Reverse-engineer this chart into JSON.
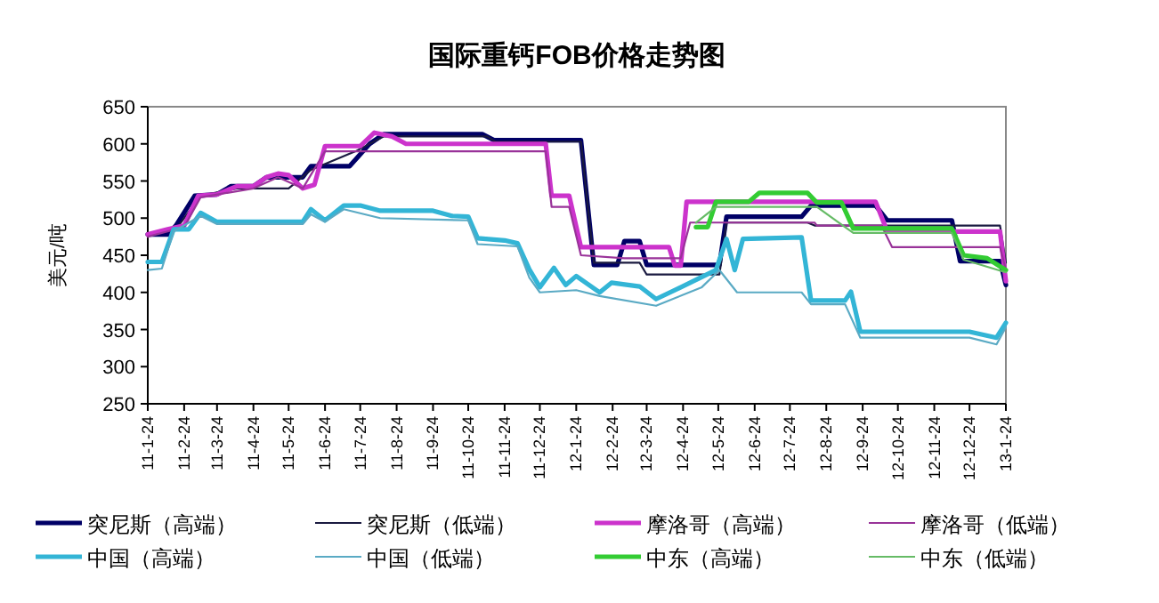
{
  "chart_data": {
    "type": "line",
    "title": "国际重钙FOB价格走势图",
    "ylabel": "美元/吨",
    "ylim": [
      250,
      650
    ],
    "yticks": [
      250,
      300,
      350,
      400,
      450,
      500,
      550,
      600,
      650
    ],
    "xlim": [
      "2011-01-24",
      "2013-01-24"
    ],
    "xticks": [
      {
        "value": "2011-01-24",
        "label": "11-1-24"
      },
      {
        "value": "2011-02-24",
        "label": "11-2-24"
      },
      {
        "value": "2011-03-24",
        "label": "11-3-24"
      },
      {
        "value": "2011-04-24",
        "label": "11-4-24"
      },
      {
        "value": "2011-05-24",
        "label": "11-5-24"
      },
      {
        "value": "2011-06-24",
        "label": "11-6-24"
      },
      {
        "value": "2011-07-24",
        "label": "11-7-24"
      },
      {
        "value": "2011-08-24",
        "label": "11-8-24"
      },
      {
        "value": "2011-09-24",
        "label": "11-9-24"
      },
      {
        "value": "2011-10-24",
        "label": "11-10-24"
      },
      {
        "value": "2011-11-24",
        "label": "11-11-24"
      },
      {
        "value": "2011-12-24",
        "label": "11-12-24"
      },
      {
        "value": "2012-01-24",
        "label": "12-1-24"
      },
      {
        "value": "2012-02-24",
        "label": "12-2-24"
      },
      {
        "value": "2012-03-24",
        "label": "12-3-24"
      },
      {
        "value": "2012-04-24",
        "label": "12-4-24"
      },
      {
        "value": "2012-05-24",
        "label": "12-5-24"
      },
      {
        "value": "2012-06-24",
        "label": "12-6-24"
      },
      {
        "value": "2012-07-24",
        "label": "12-7-24"
      },
      {
        "value": "2012-08-24",
        "label": "12-8-24"
      },
      {
        "value": "2012-09-24",
        "label": "12-9-24"
      },
      {
        "value": "2012-10-24",
        "label": "12-10-24"
      },
      {
        "value": "2012-11-24",
        "label": "12-11-24"
      },
      {
        "value": "2012-12-24",
        "label": "12-12-24"
      },
      {
        "value": "2013-01-24",
        "label": "13-1-24"
      }
    ],
    "grid": false,
    "legend": "bottom",
    "marker": "none",
    "line_style": "solid",
    "series": [
      {
        "name": "突尼斯（高端）",
        "color": "#000066",
        "x": [
          "2011-01-24",
          "2011-02-10",
          "2011-02-17",
          "2011-03-05",
          "2011-03-24",
          "2011-04-05",
          "2011-04-24",
          "2011-05-05",
          "2011-06-05",
          "2011-06-12",
          "2011-07-15",
          "2011-08-01",
          "2011-08-13",
          "2011-11-05",
          "2011-11-15",
          "2012-01-28",
          "2012-02-08",
          "2012-02-28",
          "2012-03-05",
          "2012-03-18",
          "2012-03-24",
          "2012-05-25",
          "2012-05-31",
          "2012-08-03",
          "2012-08-11",
          "2012-10-05",
          "2012-10-15",
          "2012-12-09",
          "2012-12-16",
          "2013-01-19",
          "2013-01-24"
        ],
        "values": [
          478,
          478,
          490,
          530,
          532,
          543,
          543,
          555,
          555,
          570,
          570,
          600,
          613,
          613,
          605,
          605,
          437,
          437,
          469,
          469,
          437,
          437,
          502,
          502,
          517,
          517,
          497,
          497,
          442,
          442,
          410
        ]
      },
      {
        "name": "突尼斯（低端）",
        "color": "#1a1a40",
        "x": [
          "2011-01-24",
          "2011-02-17",
          "2011-03-10",
          "2011-04-10",
          "2011-05-24",
          "2011-06-12",
          "2011-07-20",
          "2011-08-13",
          "2011-11-09",
          "2011-11-16",
          "2012-01-28",
          "2012-02-08",
          "2012-03-18",
          "2012-03-24",
          "2012-05-25",
          "2012-05-31",
          "2012-08-08",
          "2012-08-14",
          "2013-01-19",
          "2013-01-24"
        ],
        "values": [
          478,
          485,
          530,
          540,
          540,
          565,
          590,
          610,
          610,
          603,
          603,
          440,
          440,
          424,
          424,
          494,
          494,
          490,
          490,
          440
        ]
      },
      {
        "name": "摩洛哥（高端）",
        "color": "#cc33cc",
        "x": [
          "2011-01-24",
          "2011-02-10",
          "2011-02-24",
          "2011-03-08",
          "2011-03-24",
          "2011-04-10",
          "2011-04-24",
          "2011-05-05",
          "2011-05-15",
          "2011-05-24",
          "2011-06-05",
          "2011-06-15",
          "2011-06-24",
          "2011-07-24",
          "2011-08-05",
          "2011-08-20",
          "2011-09-01",
          "2011-12-29",
          "2012-01-03",
          "2012-01-18",
          "2012-01-28",
          "2012-04-12",
          "2012-04-17",
          "2012-04-22",
          "2012-04-27",
          "2012-10-05",
          "2012-10-15",
          "2013-01-19",
          "2013-01-24"
        ],
        "values": [
          478,
          485,
          490,
          530,
          532,
          543,
          543,
          555,
          560,
          558,
          540,
          545,
          597,
          597,
          615,
          610,
          600,
          600,
          530,
          530,
          461,
          461,
          436,
          436,
          522,
          522,
          482,
          482,
          415
        ]
      },
      {
        "name": "摩洛哥（低端）",
        "color": "#993399",
        "x": [
          "2011-01-24",
          "2011-02-24",
          "2011-03-10",
          "2011-04-24",
          "2011-05-15",
          "2011-06-05",
          "2011-06-24",
          "2011-12-29",
          "2012-01-03",
          "2012-01-18",
          "2012-01-28",
          "2012-03-05",
          "2012-04-22",
          "2012-04-30",
          "2012-08-14",
          "2012-08-16",
          "2012-10-10",
          "2012-10-19",
          "2013-01-19",
          "2013-01-24"
        ],
        "values": [
          475,
          488,
          528,
          540,
          555,
          540,
          590,
          590,
          515,
          515,
          450,
          446,
          446,
          494,
          494,
          490,
          490,
          461,
          461,
          430
        ]
      },
      {
        "name": "中国（高端）",
        "color": "#33b5d6",
        "x": [
          "2011-01-24",
          "2011-02-05",
          "2011-02-15",
          "2011-02-28",
          "2011-03-10",
          "2011-03-24",
          "2011-06-05",
          "2011-06-12",
          "2011-06-24",
          "2011-07-10",
          "2011-07-24",
          "2011-08-10",
          "2011-09-24",
          "2011-10-10",
          "2011-10-24",
          "2011-11-01",
          "2011-11-24",
          "2011-12-05",
          "2011-12-15",
          "2011-12-24",
          "2012-01-05",
          "2012-01-15",
          "2012-01-24",
          "2012-02-13",
          "2012-02-23",
          "2012-03-18",
          "2012-04-01",
          "2012-04-30",
          "2012-05-22",
          "2012-05-31",
          "2012-06-07",
          "2012-06-14",
          "2012-08-03",
          "2012-08-11",
          "2012-09-09",
          "2012-09-14",
          "2012-09-22",
          "2012-12-24",
          "2013-01-16",
          "2013-01-24"
        ],
        "values": [
          441,
          441,
          485,
          485,
          507,
          495,
          495,
          512,
          497,
          517,
          517,
          510,
          510,
          503,
          502,
          473,
          470,
          466,
          431,
          407,
          433,
          410,
          422,
          400,
          413,
          408,
          391,
          413,
          430,
          472,
          430,
          472,
          474,
          389,
          389,
          401,
          347,
          347,
          339,
          359
        ]
      },
      {
        "name": "中国（低端）",
        "color": "#5aaac4",
        "x": [
          "2011-01-24",
          "2011-02-05",
          "2011-02-15",
          "2011-03-10",
          "2011-03-24",
          "2011-06-05",
          "2011-06-12",
          "2011-06-24",
          "2011-07-10",
          "2011-08-10",
          "2011-10-24",
          "2011-11-01",
          "2011-12-05",
          "2011-12-15",
          "2011-12-24",
          "2012-01-24",
          "2012-02-13",
          "2012-04-01",
          "2012-05-10",
          "2012-05-25",
          "2012-06-09",
          "2012-08-03",
          "2012-08-11",
          "2012-09-09",
          "2012-09-22",
          "2012-12-24",
          "2013-01-16",
          "2013-01-24"
        ],
        "values": [
          430,
          432,
          482,
          503,
          492,
          492,
          505,
          495,
          512,
          500,
          497,
          465,
          462,
          420,
          400,
          403,
          395,
          382,
          407,
          430,
          400,
          400,
          384,
          384,
          339,
          339,
          330,
          353
        ]
      },
      {
        "name": "中东（高端）",
        "color": "#33cc33",
        "x": [
          "2012-05-05",
          "2012-05-15",
          "2012-05-22",
          "2012-06-19",
          "2012-06-28",
          "2012-08-08",
          "2012-08-16",
          "2012-09-06",
          "2012-09-16",
          "2012-12-09",
          "2012-12-19",
          "2013-01-08",
          "2013-01-24"
        ],
        "values": [
          488,
          488,
          522,
          522,
          534,
          534,
          521,
          521,
          486,
          486,
          450,
          446,
          430
        ]
      },
      {
        "name": "中东（低端）",
        "color": "#66bb66",
        "x": [
          "2012-05-05",
          "2012-05-22",
          "2012-08-08",
          "2012-08-16",
          "2012-09-16",
          "2012-12-09",
          "2012-12-19",
          "2013-01-24"
        ],
        "values": [
          494,
          515,
          515,
          515,
          480,
          480,
          444,
          427
        ]
      }
    ]
  }
}
